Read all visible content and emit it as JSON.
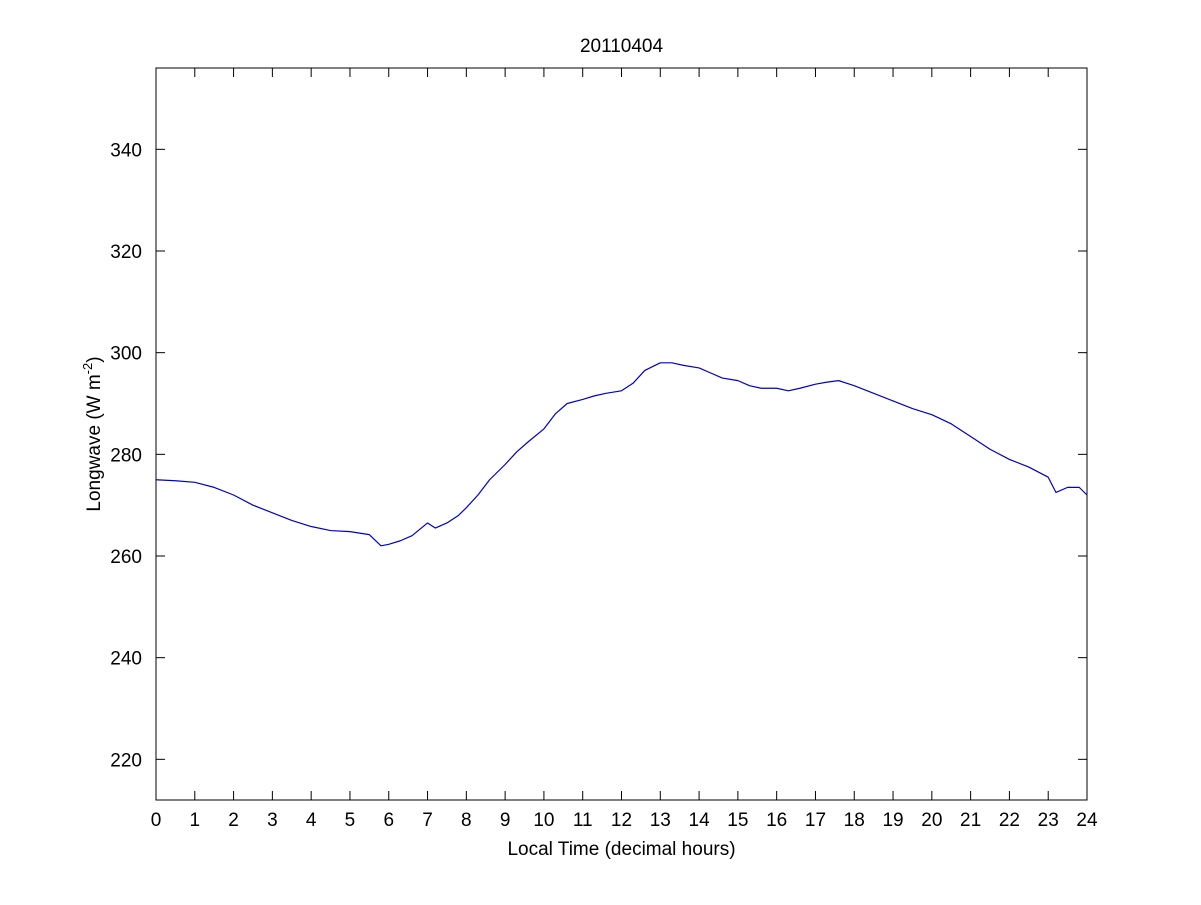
{
  "chart_data": {
    "type": "line",
    "title": "20110404",
    "xlabel": "Local Time (decimal hours)",
    "ylabel": "Longwave (W m",
    "ylabel_superscript": "-2",
    "ylabel_suffix": ")",
    "xlim": [
      0,
      24
    ],
    "ylim": [
      212,
      356
    ],
    "xticks": [
      0,
      1,
      2,
      3,
      4,
      5,
      6,
      7,
      8,
      9,
      10,
      11,
      12,
      13,
      14,
      15,
      16,
      17,
      18,
      19,
      20,
      21,
      22,
      23,
      24
    ],
    "yticks": [
      220,
      240,
      260,
      280,
      300,
      320,
      340
    ],
    "grid": false,
    "legend": "none",
    "series": [
      {
        "color": "#0000cc",
        "x": [
          0,
          0.5,
          1,
          1.5,
          2,
          2.5,
          3,
          3.5,
          4,
          4.5,
          5,
          5.5,
          5.8,
          6,
          6.3,
          6.6,
          7,
          7.2,
          7.5,
          7.8,
          8,
          8.3,
          8.6,
          9,
          9.3,
          9.6,
          10,
          10.3,
          10.6,
          11,
          11.3,
          11.6,
          12,
          12.3,
          12.6,
          13,
          13.3,
          13.6,
          14,
          14.3,
          14.6,
          15,
          15.3,
          15.6,
          16,
          16.3,
          16.6,
          17,
          17.3,
          17.6,
          18,
          18.5,
          19,
          19.5,
          20,
          20.5,
          21,
          21.5,
          22,
          22.5,
          23,
          23.2,
          23.5,
          23.8,
          24
        ],
        "y": [
          275,
          274.8,
          274.5,
          273.5,
          272,
          270,
          268.5,
          267,
          265.8,
          265,
          264.8,
          264.2,
          262,
          262.3,
          263,
          264,
          266.5,
          265.5,
          266.5,
          268,
          269.5,
          272,
          275,
          278,
          280.5,
          282.5,
          285,
          288,
          290,
          290.8,
          291.5,
          292,
          292.5,
          294,
          296.5,
          298,
          298,
          297.5,
          297,
          296,
          295,
          294.5,
          293.5,
          293,
          293,
          292.5,
          293,
          293.8,
          294.2,
          294.5,
          293.5,
          292,
          290.5,
          289,
          287.8,
          286,
          283.5,
          281,
          279,
          277.5,
          275.5,
          272.5,
          273.5,
          273.5,
          272
        ]
      }
    ]
  }
}
